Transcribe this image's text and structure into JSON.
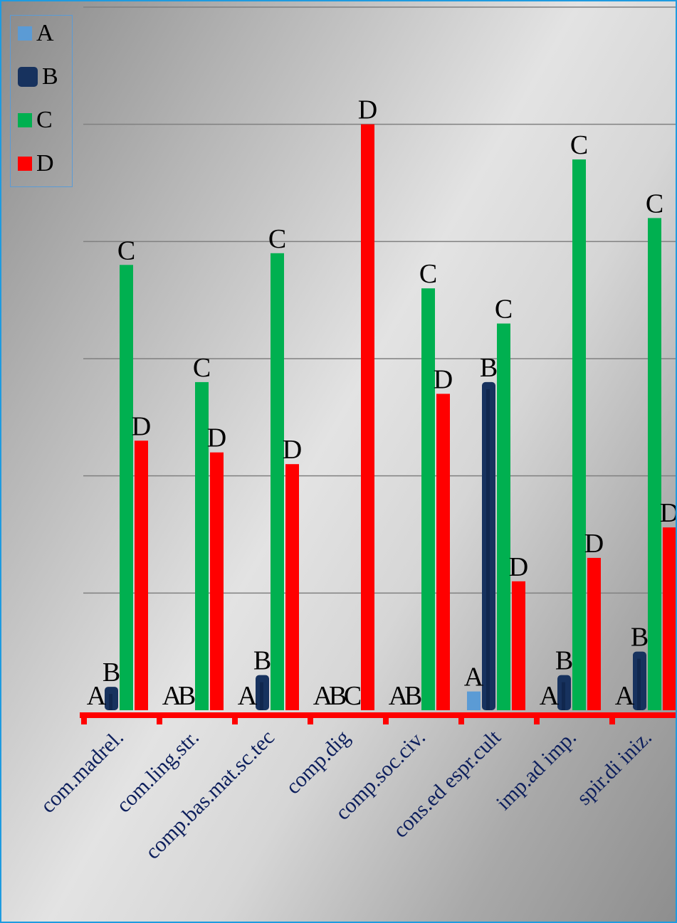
{
  "chart_data": {
    "type": "bar",
    "categories": [
      "com.madrel.",
      "com.ling.str.",
      "comp.bas.mat.sc.tec",
      "comp.dig",
      "comp.soc.civ.",
      "cons.ed espr.cult",
      "imp.ad imp.",
      "spir.di iniz."
    ],
    "series": [
      {
        "name": "A",
        "color": "#5b9bd5",
        "values": [
          0,
          0,
          0,
          0,
          0,
          0.8,
          0,
          0
        ]
      },
      {
        "name": "B",
        "color": "#17325e",
        "values": [
          1,
          0,
          1.5,
          0,
          0,
          14,
          1.5,
          2.5
        ]
      },
      {
        "name": "C",
        "color": "#00b050",
        "values": [
          19,
          14,
          19.5,
          0,
          18,
          16.5,
          23.5,
          21
        ]
      },
      {
        "name": "D",
        "color": "#ff0000",
        "values": [
          11.5,
          11,
          10.5,
          25,
          13.5,
          5.5,
          6.5,
          7.8
        ]
      }
    ],
    "ylim": [
      0,
      30
    ],
    "grid": true,
    "legend_position": "top-left",
    "data_labels": "series-name",
    "axis_color": "#ff0000",
    "category_label_color": "#0d1f5c"
  }
}
